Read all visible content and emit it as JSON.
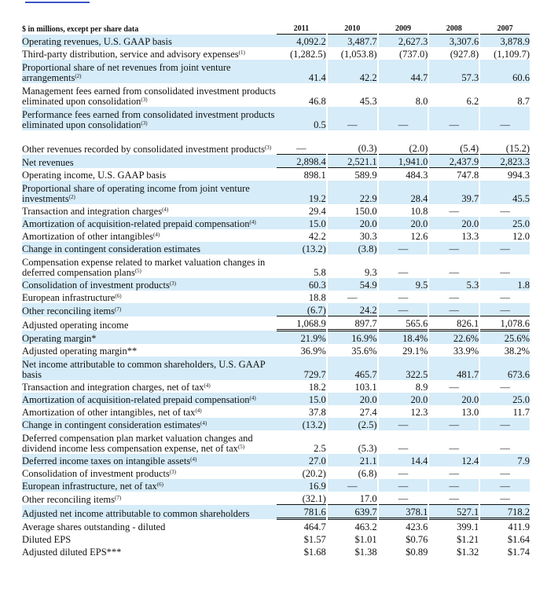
{
  "header": {
    "units_label": "$ in millions, except per share data",
    "years": [
      "2011",
      "2010",
      "2009",
      "2008",
      "2007"
    ]
  },
  "rows": [
    {
      "label": "Operating revenues, U.S. GAAP basis",
      "note": "",
      "values": [
        "4,092.2",
        "3,487.7",
        "2,627.3",
        "3,307.6",
        "3,878.9"
      ],
      "blue": true,
      "tall": false
    },
    {
      "label": "Third-party distribution, service and advisory expenses",
      "note": "(1)",
      "values": [
        "(1,282.5)",
        "(1,053.8)",
        "(737.0)",
        "(927.8)",
        "(1,109.7)"
      ],
      "blue": false,
      "tall": false
    },
    {
      "label": "Proportional share of net revenues from joint venture arrangements",
      "note": "(2)",
      "values": [
        "41.4",
        "42.2",
        "44.7",
        "57.3",
        "60.6"
      ],
      "blue": true,
      "tall": true
    },
    {
      "label": "Management fees earned from consolidated investment products eliminated upon consolidation",
      "note": "(3)",
      "values": [
        "46.8",
        "45.3",
        "8.0",
        "6.2",
        "8.7"
      ],
      "blue": false,
      "tall": true
    },
    {
      "label": "Performance fees earned from consolidated investment products eliminated upon consolidation",
      "note": "(3)",
      "values": [
        "0.5",
        "—",
        "—",
        "—",
        "—"
      ],
      "blue": true,
      "tall": true
    },
    {
      "label": "Other revenues recorded by consolidated investment products",
      "note": "(3)",
      "values": [
        "—",
        "(0.3)",
        "(2.0)",
        "(5.4)",
        "(15.2)"
      ],
      "blue": false,
      "tall": true
    },
    {
      "label": "Net revenues",
      "note": "",
      "values": [
        "2,898.4",
        "2,521.1",
        "1,941.0",
        "2,437.9",
        "2,823.3"
      ],
      "blue": true,
      "tall": false
    },
    {
      "label": "Operating income, U.S. GAAP basis",
      "note": "",
      "values": [
        "898.1",
        "589.9",
        "484.3",
        "747.8",
        "994.3"
      ],
      "blue": false,
      "tall": false
    },
    {
      "label": "Proportional share of operating income from joint venture investments",
      "note": "(2)",
      "values": [
        "19.2",
        "22.9",
        "28.4",
        "39.7",
        "45.5"
      ],
      "blue": true,
      "tall": true
    },
    {
      "label": "Transaction and integration charges",
      "note": "(4)",
      "values": [
        "29.4",
        "150.0",
        "10.8",
        "—",
        "—"
      ],
      "blue": false,
      "tall": false
    },
    {
      "label": "Amortization of acquisition-related prepaid compensation",
      "note": "(4)",
      "values": [
        "15.0",
        "20.0",
        "20.0",
        "20.0",
        "25.0"
      ],
      "blue": true,
      "tall": false
    },
    {
      "label": "Amortization of other intangibles",
      "note": "(4)",
      "values": [
        "42.2",
        "30.3",
        "12.6",
        "13.3",
        "12.0"
      ],
      "blue": false,
      "tall": false
    },
    {
      "label": "Change in contingent consideration estimates",
      "note": "",
      "values": [
        "(13.2)",
        "(3.8)",
        "—",
        "—",
        "—"
      ],
      "blue": true,
      "tall": false
    },
    {
      "label": "Compensation expense related to market valuation changes in deferred compensation plans",
      "note": "(5)",
      "values": [
        "5.8",
        "9.3",
        "—",
        "—",
        "—"
      ],
      "blue": false,
      "tall": true
    },
    {
      "label": "Consolidation of investment products",
      "note": "(3)",
      "values": [
        "60.3",
        "54.9",
        "9.5",
        "5.3",
        "1.8"
      ],
      "blue": true,
      "tall": false
    },
    {
      "label": "European infrastructure",
      "note": "(6)",
      "values": [
        "18.8",
        "—",
        "—",
        "—",
        "—"
      ],
      "blue": false,
      "tall": false
    },
    {
      "label": "Other reconciling items",
      "note": "(7)",
      "values": [
        "(6.7)",
        "24.2",
        "—",
        "—",
        "—"
      ],
      "blue": true,
      "tall": false
    },
    {
      "label": "Adjusted operating income",
      "note": "",
      "values": [
        "1,068.9",
        "897.7",
        "565.6",
        "826.1",
        "1,078.6"
      ],
      "blue": false,
      "tall": false
    },
    {
      "label": "Operating margin*",
      "note": "",
      "values": [
        "21.9%",
        "16.9%",
        "18.4%",
        "22.6%",
        "25.6%"
      ],
      "blue": true,
      "tall": false
    },
    {
      "label": "Adjusted operating margin**",
      "note": "",
      "values": [
        "36.9%",
        "35.6%",
        "29.1%",
        "33.9%",
        "38.2%"
      ],
      "blue": false,
      "tall": false
    },
    {
      "label": "Net income attributable to common shareholders, U.S. GAAP basis",
      "note": "",
      "values": [
        "729.7",
        "465.7",
        "322.5",
        "481.7",
        "673.6"
      ],
      "blue": true,
      "tall": true
    },
    {
      "label": "Transaction and integration charges, net of tax",
      "note": "(4)",
      "values": [
        "18.2",
        "103.1",
        "8.9",
        "—",
        "—"
      ],
      "blue": false,
      "tall": false
    },
    {
      "label": "Amortization of acquisition-related prepaid compensation",
      "note": "(4)",
      "values": [
        "15.0",
        "20.0",
        "20.0",
        "20.0",
        "25.0"
      ],
      "blue": true,
      "tall": false
    },
    {
      "label": "Amortization of other intangibles, net of tax",
      "note": "(4)",
      "values": [
        "37.8",
        "27.4",
        "12.3",
        "13.0",
        "11.7"
      ],
      "blue": false,
      "tall": false
    },
    {
      "label": "Change in contingent consideration estimates",
      "note": "(4)",
      "values": [
        "(13.2)",
        "(2.5)",
        "—",
        "—",
        "—"
      ],
      "blue": true,
      "tall": false
    },
    {
      "label": "Deferred compensation plan market valuation changes and dividend income less compensation expense, net of tax",
      "note": "(5)",
      "values": [
        "2.5",
        "(5.3)",
        "—",
        "—",
        "—"
      ],
      "blue": false,
      "tall": true
    },
    {
      "label": "Deferred income taxes on intangible assets",
      "note": "(4)",
      "values": [
        "27.0",
        "21.1",
        "14.4",
        "12.4",
        "7.9"
      ],
      "blue": true,
      "tall": false
    },
    {
      "label": "Consolidation of investment products",
      "note": "(3)",
      "values": [
        "(20.2)",
        "(6.8)",
        "—",
        "—",
        "—"
      ],
      "blue": false,
      "tall": false
    },
    {
      "label": "European infrastructure, net of tax",
      "note": "(6)",
      "values": [
        "16.9",
        "—",
        "—",
        "—",
        "—"
      ],
      "blue": true,
      "tall": false
    },
    {
      "label": "Other reconciling items",
      "note": "(7)",
      "values": [
        "(32.1)",
        "17.0",
        "—",
        "—",
        "—"
      ],
      "blue": false,
      "tall": false
    },
    {
      "label": "Adjusted net income attributable to common shareholders",
      "note": "",
      "values": [
        "781.6",
        "639.7",
        "378.1",
        "527.1",
        "718.2"
      ],
      "blue": true,
      "tall": false
    },
    {
      "label": "Average shares outstanding - diluted",
      "note": "",
      "values": [
        "464.7",
        "463.2",
        "423.6",
        "399.1",
        "411.9"
      ],
      "blue": false,
      "tall": false
    },
    {
      "label": "Diluted EPS",
      "note": "",
      "values": [
        "$1.57",
        "$1.01",
        "$0.76",
        "$1.21",
        "$1.64"
      ],
      "blue": false,
      "tall": false
    },
    {
      "label": "Adjusted diluted EPS***",
      "note": "",
      "values": [
        "$1.68",
        "$1.38",
        "$0.89",
        "$1.32",
        "$1.74"
      ],
      "blue": false,
      "tall": false
    }
  ]
}
